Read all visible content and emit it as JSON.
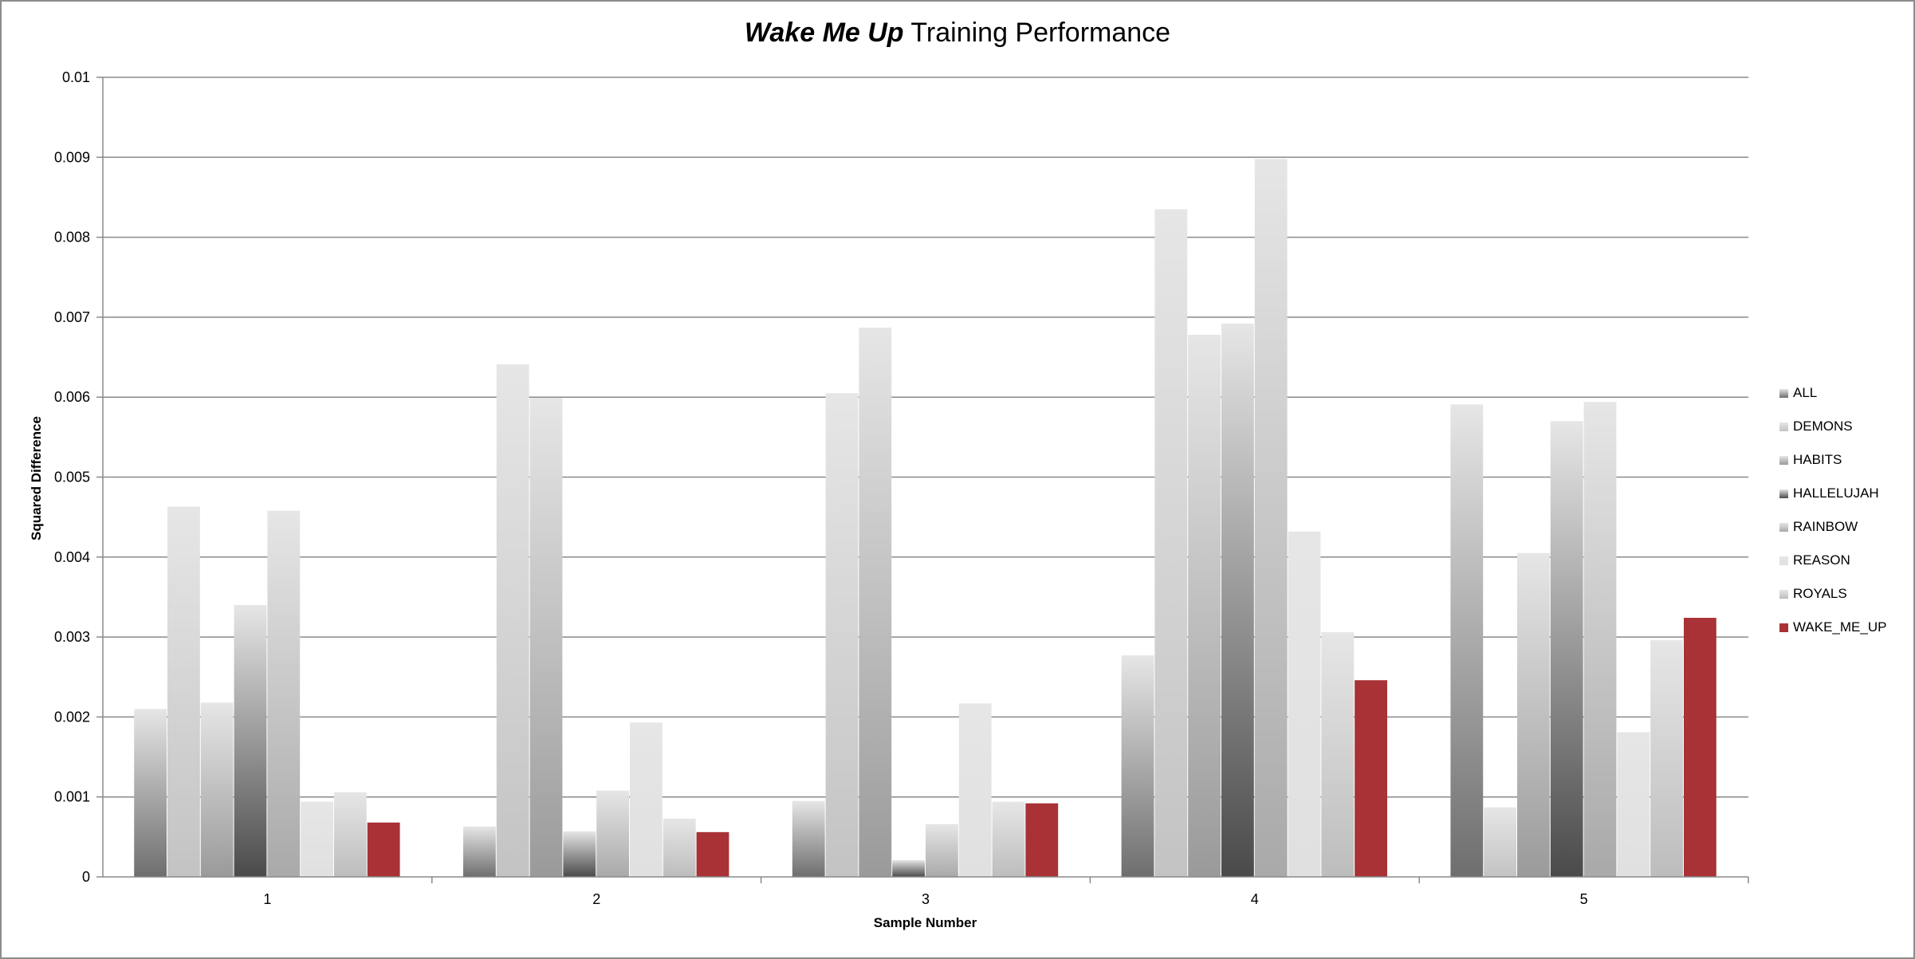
{
  "chart_data": {
    "type": "bar",
    "title_italic": "Wake Me Up",
    "title_rest": " Training Performance",
    "xlabel": "Sample Number",
    "ylabel": "Squared Difference",
    "ylim": [
      0,
      0.01
    ],
    "yticks": [
      "0",
      "0.001",
      "0.002",
      "0.003",
      "0.004",
      "0.005",
      "0.006",
      "0.007",
      "0.008",
      "0.009",
      "0.01"
    ],
    "grid": true,
    "legend_position": "right",
    "categories": [
      "1",
      "2",
      "3",
      "4",
      "5"
    ],
    "series": [
      {
        "name": "ALL",
        "color": "#6e6e6e",
        "values": [
          0.0021,
          0.00063,
          0.00095,
          0.00277,
          0.00591
        ]
      },
      {
        "name": "DEMONS",
        "color": "#c3c3c3",
        "values": [
          0.00463,
          0.00641,
          0.00605,
          0.00835,
          0.00087
        ]
      },
      {
        "name": "HABITS",
        "color": "#9a9a9a",
        "values": [
          0.00218,
          0.00599,
          0.00687,
          0.00678,
          0.00405
        ]
      },
      {
        "name": "HALLELUJAH",
        "color": "#4a4a4a",
        "values": [
          0.0034,
          0.00057,
          0.00021,
          0.00692,
          0.0057
        ]
      },
      {
        "name": "RAINBOW",
        "color": "#a9a9a9",
        "values": [
          0.00458,
          0.00108,
          0.00066,
          0.00898,
          0.00594
        ]
      },
      {
        "name": "REASON",
        "color": "#e0e0e0",
        "values": [
          0.00094,
          0.00193,
          0.00217,
          0.00432,
          0.00181
        ]
      },
      {
        "name": "ROYALS",
        "color": "#bdbdbd",
        "values": [
          0.00106,
          0.00073,
          0.00094,
          0.00306,
          0.00296
        ]
      },
      {
        "name": "WAKE_ME_UP",
        "color": "#a83236",
        "values": [
          0.00068,
          0.00056,
          0.00092,
          0.00246,
          0.00324
        ]
      }
    ]
  }
}
